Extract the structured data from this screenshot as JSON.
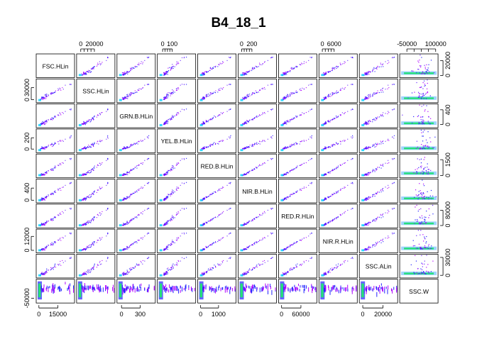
{
  "chart_data": {
    "type": "scatter",
    "subtype": "scatterplot-matrix",
    "title": "B4_18_1",
    "variables": [
      "FSC.HLin",
      "SSC.HLin",
      "GRN.B.HLin",
      "YEL.B.HLin",
      "RED.B.HLin",
      "NIR.B.HLin",
      "RED.R.HLin",
      "NIR.R.HLin",
      "SSC.ALin",
      "SSC.W"
    ],
    "ranges": [
      [
        -1000,
        27000
      ],
      [
        -4000,
        48000
      ],
      [
        -50,
        520
      ],
      [
        -40,
        330
      ],
      [
        -80,
        1900
      ],
      [
        -40,
        650
      ],
      [
        -5000,
        105000
      ],
      [
        -1000,
        17000
      ],
      [
        -2000,
        33000
      ],
      [
        -80000,
        105000
      ]
    ],
    "axes": {
      "top": [
        {
          "col": 1,
          "ticks": [
            0,
            20000
          ],
          "labels": [
            "0",
            "20000"
          ]
        },
        {
          "col": 3,
          "ticks": [
            0,
            100
          ],
          "labels": [
            "0",
            "100"
          ]
        },
        {
          "col": 5,
          "ticks": [
            0,
            200
          ],
          "labels": [
            "0",
            "200"
          ]
        },
        {
          "col": 7,
          "ticks": [
            0,
            6000
          ],
          "labels": [
            "0",
            "6000"
          ]
        },
        {
          "col": 9,
          "ticks": [
            -50000,
            100000
          ],
          "labels": [
            "-50000",
            "100000"
          ]
        }
      ],
      "bottom": [
        {
          "col": 0,
          "ticks": [
            0,
            15000
          ],
          "labels": [
            "0",
            "15000"
          ]
        },
        {
          "col": 2,
          "ticks": [
            0,
            300
          ],
          "labels": [
            "0",
            "300"
          ]
        },
        {
          "col": 4,
          "ticks": [
            0,
            1000
          ],
          "labels": [
            "0",
            "1000"
          ]
        },
        {
          "col": 6,
          "ticks": [
            0,
            60000
          ],
          "labels": [
            "0",
            "60000"
          ]
        },
        {
          "col": 8,
          "ticks": [
            0,
            20000
          ],
          "labels": [
            "0",
            "20000"
          ]
        }
      ],
      "left": [
        {
          "row": 1,
          "ticks": [
            0,
            30000
          ],
          "labels": [
            "0",
            "30000"
          ]
        },
        {
          "row": 3,
          "ticks": [
            0,
            200
          ],
          "labels": [
            "0",
            "200"
          ]
        },
        {
          "row": 5,
          "ticks": [
            0,
            400
          ],
          "labels": [
            "0",
            "400"
          ]
        },
        {
          "row": 7,
          "ticks": [
            0,
            12000
          ],
          "labels": [
            "0",
            "12000"
          ]
        },
        {
          "row": 9,
          "ticks": [
            -50000
          ],
          "labels": [
            "-50000"
          ]
        }
      ],
      "right": [
        {
          "row": 0,
          "ticks": [
            0,
            20000
          ],
          "labels": [
            "0",
            "20000"
          ]
        },
        {
          "row": 2,
          "ticks": [
            0,
            400
          ],
          "labels": [
            "0",
            "400"
          ]
        },
        {
          "row": 4,
          "ticks": [
            0,
            1500
          ],
          "labels": [
            "0",
            "1500"
          ]
        },
        {
          "row": 6,
          "ticks": [
            0,
            80000
          ],
          "labels": [
            "0",
            "80000"
          ]
        },
        {
          "row": 8,
          "ticks": [
            0,
            30000
          ],
          "labels": [
            "0",
            "30000"
          ]
        }
      ]
    },
    "point_colors": [
      "#2222ff",
      "#6a2bff",
      "#b000ff",
      "#00d0ff",
      "#27e07a"
    ],
    "grid": false,
    "legend": "none"
  }
}
